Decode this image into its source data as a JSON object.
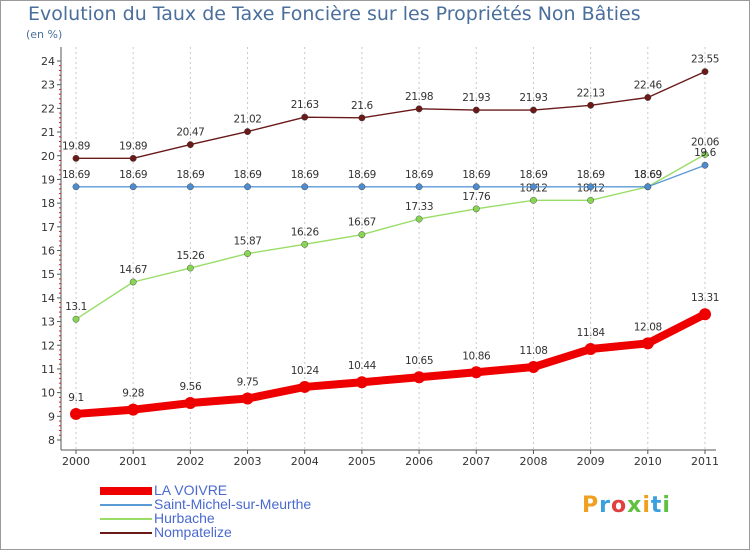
{
  "title": "Evolution du Taux de Taxe Foncière sur les Propriétés Non Bâties",
  "subtitle": "(en %)",
  "logo": {
    "text": "Proxiti"
  },
  "chart_data": {
    "type": "line",
    "x": [
      "2000",
      "2001",
      "2002",
      "2003",
      "2004",
      "2005",
      "2006",
      "2007",
      "2008",
      "2009",
      "2010",
      "2011"
    ],
    "ylim": [
      8,
      24
    ],
    "yticks": [
      "8",
      "9",
      "10",
      "11",
      "12",
      "13",
      "14",
      "15",
      "16",
      "17",
      "18",
      "19",
      "20",
      "21",
      "22",
      "23",
      "24"
    ],
    "grid": "vertical-dashed",
    "legend_position": "bottom-left",
    "series": [
      {
        "name": "LA VOIVRE",
        "color": "#e00000",
        "values": [
          9.1,
          9.28,
          9.56,
          9.75,
          10.24,
          10.44,
          10.65,
          10.86,
          11.08,
          11.84,
          12.08,
          13.31
        ],
        "labels": [
          "9.1",
          "9.28",
          "9.56",
          "9.75",
          "10.24",
          "10.44",
          "10.65",
          "10.86",
          "11.08",
          "11.84",
          "12.08",
          "13.31"
        ]
      },
      {
        "name": "Saint-Michel-sur-Meurthe",
        "color": "#5b9bd5",
        "values": [
          18.69,
          18.69,
          18.69,
          18.69,
          18.69,
          18.69,
          18.69,
          18.69,
          18.69,
          18.69,
          18.69,
          19.6
        ],
        "labels": [
          "18.69",
          "18.69",
          "18.69",
          "18.69",
          "18.69",
          "18.69",
          "18.69",
          "18.69",
          "18.69",
          "18.69",
          "18.69",
          "19.6"
        ]
      },
      {
        "name": "Hurbache",
        "color": "#99dd66",
        "values": [
          13.1,
          14.67,
          15.26,
          15.87,
          16.26,
          16.67,
          17.33,
          17.76,
          18.12,
          18.12,
          18.69,
          20.06
        ],
        "labels": [
          "13.1",
          "14.67",
          "15.26",
          "15.87",
          "16.26",
          "16.67",
          "17.33",
          "17.76",
          "18.12",
          "18.12",
          "18.69",
          "20.06"
        ]
      },
      {
        "name": "Nompatelize",
        "color": "#6b1a1a",
        "values": [
          19.89,
          19.89,
          20.47,
          21.02,
          21.63,
          21.6,
          21.98,
          21.93,
          21.93,
          22.13,
          22.46,
          23.55
        ],
        "labels": [
          "19.89",
          "19.89",
          "20.47",
          "21.02",
          "21.63",
          "21.6",
          "21.98",
          "21.93",
          "21.93",
          "22.13",
          "22.46",
          "23.55"
        ]
      }
    ]
  }
}
